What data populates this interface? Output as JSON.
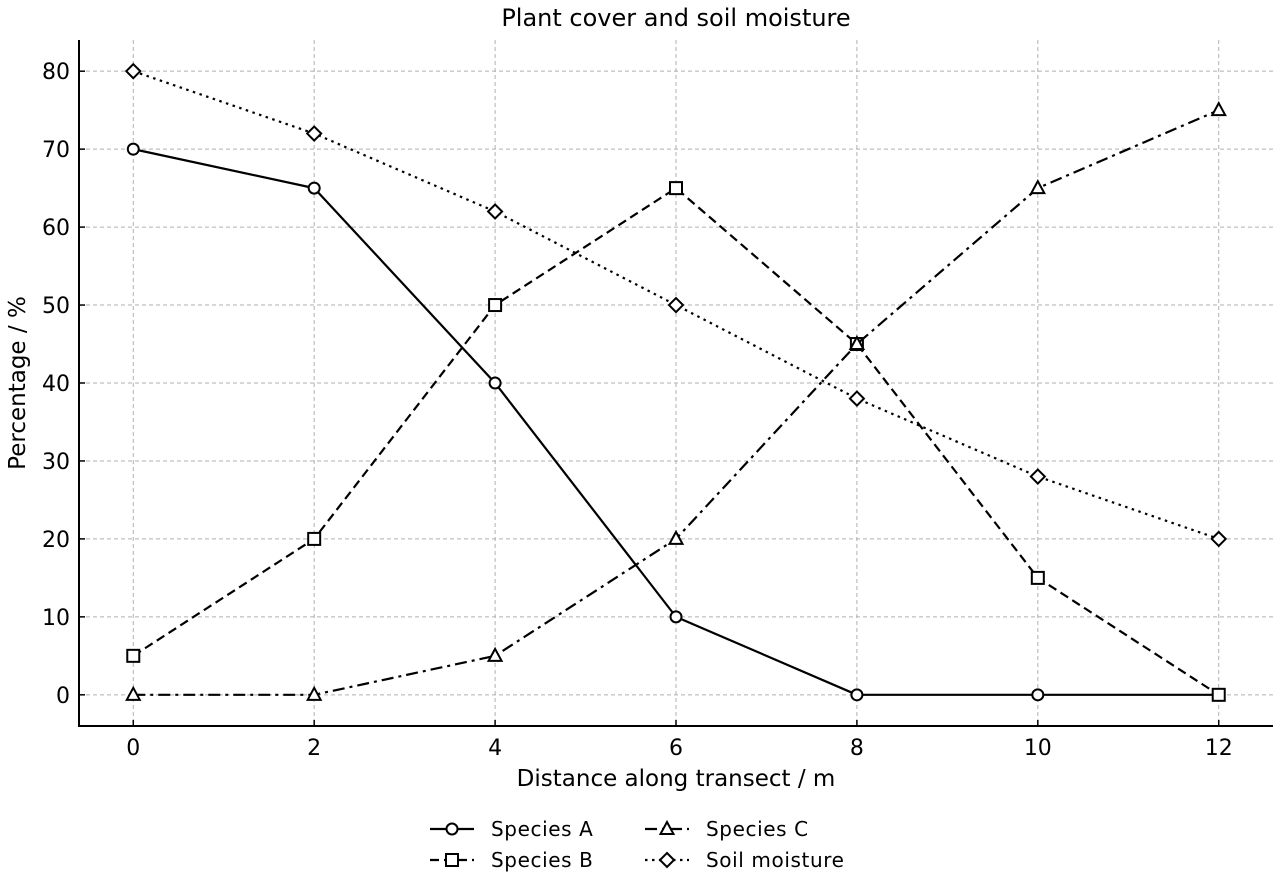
{
  "chart_data": {
    "type": "line",
    "title": "Plant cover and soil moisture",
    "xlabel": "Distance along transect / m",
    "ylabel": "Percentage / %",
    "x": [
      0,
      2,
      4,
      6,
      8,
      10,
      12
    ],
    "xlim": [
      -0.6,
      12.6
    ],
    "ylim": [
      -4,
      84
    ],
    "xticks": [
      0,
      2,
      4,
      6,
      8,
      10,
      12
    ],
    "yticks": [
      0,
      10,
      20,
      30,
      40,
      50,
      60,
      70,
      80
    ],
    "grid": true,
    "legend_position": "bottom-center",
    "line_color": "#000000",
    "series": [
      {
        "name": "Species A",
        "values": [
          70,
          65,
          40,
          10,
          0,
          0,
          0
        ],
        "marker": "circle",
        "dash": "solid"
      },
      {
        "name": "Species B",
        "values": [
          5,
          20,
          50,
          65,
          45,
          15,
          0
        ],
        "marker": "square",
        "dash": "dashed"
      },
      {
        "name": "Species C",
        "values": [
          0,
          0,
          5,
          20,
          45,
          65,
          75
        ],
        "marker": "triangle",
        "dash": "dashdot"
      },
      {
        "name": "Soil moisture",
        "values": [
          80,
          72,
          62,
          50,
          38,
          28,
          20
        ],
        "marker": "diamond",
        "dash": "dotted"
      }
    ]
  }
}
